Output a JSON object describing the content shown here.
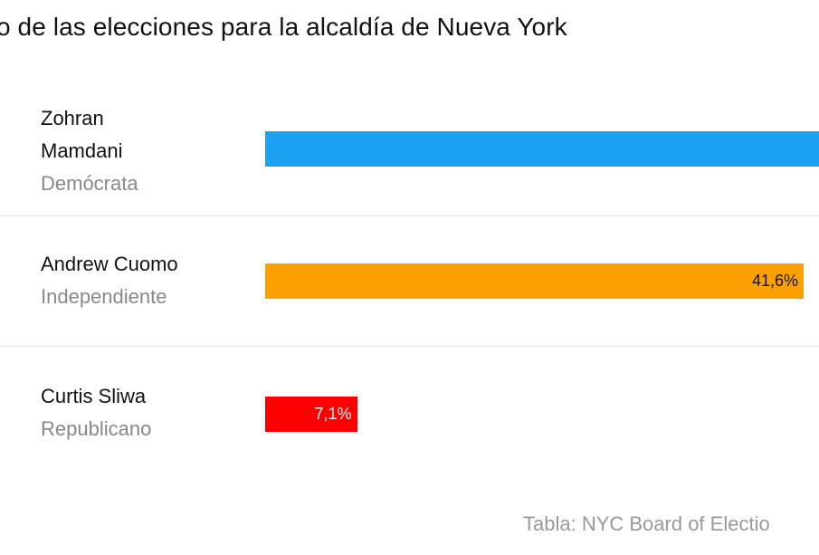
{
  "title": "o de las elecciones para la alcaldía de Nueva York",
  "source": "Tabla: NYC Board of Electio",
  "chart_data": {
    "type": "bar",
    "orientation": "horizontal",
    "unit": "%",
    "categories": [
      "Zohran Mamdani",
      "Andrew Cuomo",
      "Curtis Sliwa"
    ],
    "rows": [
      {
        "name": "Zohran Mamdani",
        "party": "Demócrata",
        "value": 50.4,
        "label": "",
        "color": "#1da1f2",
        "label_color": "#121212"
      },
      {
        "name": "Andrew Cuomo",
        "party": "Independiente",
        "value": 41.6,
        "label": "41,6%",
        "color": "#fc9f00",
        "label_color": "#121212"
      },
      {
        "name": "Curtis Sliwa",
        "party": "Republicano",
        "value": 7.1,
        "label": "7,1%",
        "color": "#ff0000",
        "label_color": "#ffffff"
      }
    ]
  }
}
